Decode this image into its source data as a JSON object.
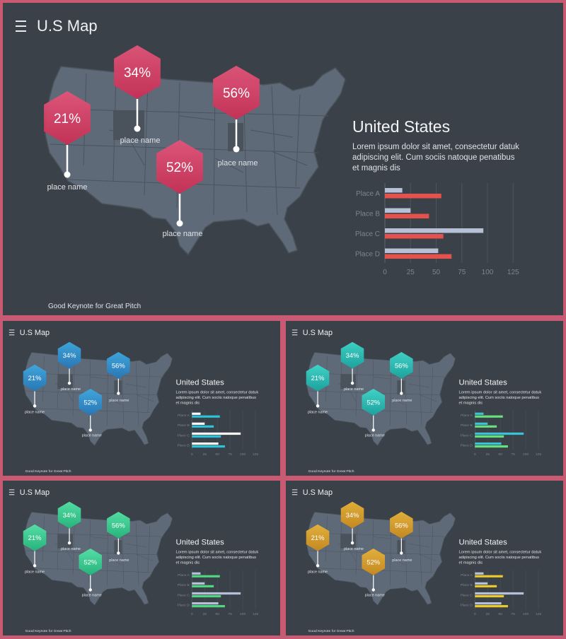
{
  "slide": {
    "title": "U.S Map",
    "heading": "United  States",
    "description_lines": [
      "Lorem ipsum dolor sit amet, consectetur datuk",
      "adipiscing elit. Cum sociis natoque penatibus",
      "et magnis dis"
    ],
    "footer": "Good Keynote for Great Pitch",
    "markers": [
      {
        "value": "21%",
        "label": "place name"
      },
      {
        "value": "34%",
        "label": "place name"
      },
      {
        "value": "56%",
        "label": "place name"
      },
      {
        "value": "52%",
        "label": "place name"
      }
    ]
  },
  "chart_data": {
    "type": "bar",
    "orientation": "horizontal",
    "categories": [
      "Place A",
      "Place B",
      "Place C",
      "Place D"
    ],
    "series": [
      {
        "values": [
          17,
          25,
          96,
          52
        ]
      },
      {
        "values": [
          55,
          43,
          57,
          65
        ]
      }
    ],
    "xticks": [
      "0",
      "25",
      "50",
      "75",
      "100",
      "125"
    ],
    "xlim": [
      0,
      125
    ],
    "grid": true
  },
  "themes": [
    {
      "name": "red",
      "hex_light": "#e2557a",
      "hex_dark": "#c72f54",
      "bar_a": "#b6c0d6",
      "bar_b": "#e5514c"
    },
    {
      "name": "blue",
      "hex_light": "#3fa9e0",
      "hex_dark": "#2677b8",
      "bar_a": "#ffffff",
      "bar_b": "#2bc3d8"
    },
    {
      "name": "teal",
      "hex_light": "#3fd7c9",
      "hex_dark": "#1aa4a0",
      "bar_a": "#38c3d6",
      "bar_b": "#66e07a"
    },
    {
      "name": "green",
      "hex_light": "#55e3a6",
      "hex_dark": "#23b87c",
      "bar_a": "#b6c0d6",
      "bar_b": "#4fd67e"
    },
    {
      "name": "gold",
      "hex_light": "#e8b43a",
      "hex_dark": "#c98a1c",
      "bar_a": "#b6c0d6",
      "bar_b": "#ebc92a"
    }
  ]
}
